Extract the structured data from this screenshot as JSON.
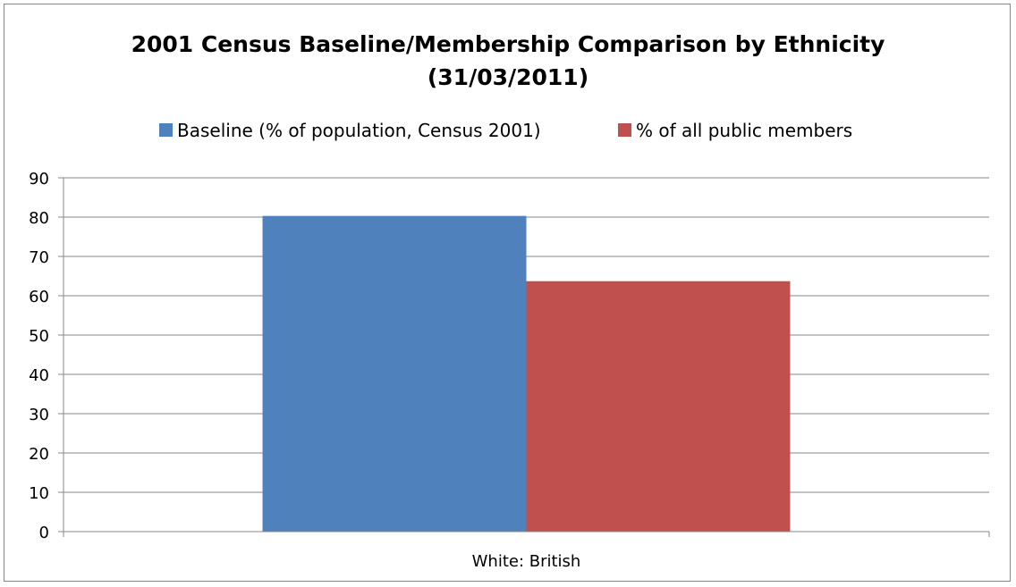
{
  "chart_data": {
    "type": "bar",
    "title": "2001 Census Baseline/Membership Comparison  by Ethnicity",
    "subtitle": "(31/03/2011)",
    "categories": [
      "White: British"
    ],
    "series": [
      {
        "name": "Baseline (% of population, Census 2001)",
        "values": [
          80.3
        ],
        "color": "#4F81BD"
      },
      {
        "name": "% of all public members",
        "values": [
          63.7
        ],
        "color": "#C0504D"
      }
    ],
    "xlabel": "",
    "ylabel": "",
    "ylim": [
      0,
      90
    ],
    "yticks": [
      0,
      10,
      20,
      30,
      40,
      50,
      60,
      70,
      80,
      90
    ],
    "grid": true,
    "legend_position": "top"
  }
}
